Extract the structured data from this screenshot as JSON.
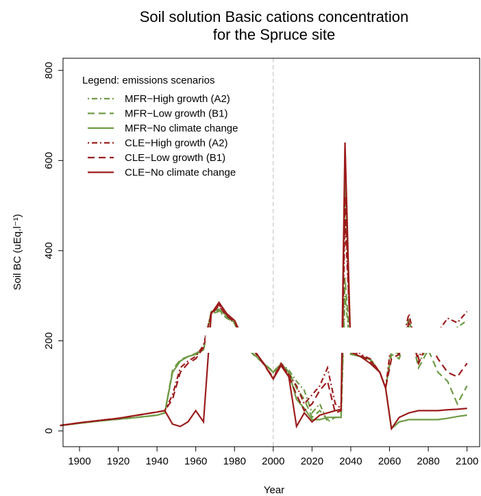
{
  "chart_data": {
    "type": "line",
    "title": "Soil solution Basic cations concentration",
    "subtitle": "for the Spruce site",
    "x_label": "Year",
    "y_label": "Soil BC (uEq.l⁻¹)",
    "legend_title": "Legend: emissions scenarios",
    "legend_position": "top-left",
    "vline": 2000,
    "x": [
      1890,
      1900,
      1910,
      1920,
      1930,
      1940,
      1944,
      1948,
      1952,
      1956,
      1960,
      1964,
      1968,
      1972,
      1976,
      1980,
      1985,
      1990,
      1995,
      2000,
      2004,
      2008,
      2012,
      2016,
      2020,
      2024,
      2028,
      2032,
      2035,
      2037,
      2040,
      2045,
      2050,
      2055,
      2058,
      2061,
      2065,
      2070,
      2075,
      2080,
      2085,
      2090,
      2095,
      2100
    ],
    "series": [
      {
        "name": "MFR−High growth (A2)",
        "color": "#6e9a45",
        "linestyle": "dotdash",
        "values": [
          12,
          17,
          22,
          26,
          30,
          35,
          40,
          130,
          155,
          165,
          170,
          180,
          260,
          265,
          250,
          240,
          190,
          170,
          150,
          130,
          150,
          135,
          110,
          90,
          40,
          60,
          20,
          30,
          30,
          300,
          175,
          165,
          160,
          130,
          95,
          180,
          170,
          250,
          150,
          190,
          200,
          210,
          230,
          245
        ]
      },
      {
        "name": "MFR−Low growth (B1)",
        "color": "#6e9a45",
        "linestyle": "dashed",
        "values": [
          12,
          17,
          22,
          26,
          30,
          35,
          40,
          135,
          158,
          165,
          172,
          182,
          262,
          268,
          252,
          238,
          192,
          168,
          150,
          132,
          148,
          132,
          95,
          70,
          30,
          45,
          25,
          30,
          30,
          340,
          172,
          165,
          158,
          130,
          95,
          170,
          160,
          230,
          140,
          180,
          130,
          110,
          60,
          100
        ]
      },
      {
        "name": "MFR−No climate change",
        "color": "#6e9a45",
        "linestyle": "solid",
        "values": [
          12,
          17,
          22,
          26,
          30,
          35,
          40,
          130,
          155,
          165,
          170,
          180,
          265,
          270,
          255,
          240,
          190,
          170,
          150,
          130,
          145,
          130,
          70,
          50,
          25,
          25,
          30,
          30,
          30,
          580,
          170,
          165,
          160,
          130,
          95,
          5,
          20,
          25,
          25,
          25,
          25,
          28,
          32,
          35
        ]
      },
      {
        "name": "CLE−High growth (A2)",
        "color": "#9b1b1b",
        "linestyle": "dotdash",
        "values": [
          12,
          18,
          23,
          28,
          35,
          42,
          45,
          80,
          140,
          155,
          165,
          190,
          262,
          280,
          258,
          245,
          200,
          180,
          150,
          118,
          150,
          125,
          100,
          60,
          80,
          100,
          140,
          60,
          50,
          470,
          200,
          170,
          160,
          130,
          95,
          200,
          170,
          260,
          160,
          215,
          220,
          250,
          240,
          265
        ]
      },
      {
        "name": "CLE−Low growth (B1)",
        "color": "#9b1b1b",
        "linestyle": "dashed",
        "values": [
          12,
          18,
          23,
          28,
          35,
          42,
          45,
          70,
          130,
          150,
          160,
          185,
          258,
          278,
          255,
          242,
          198,
          178,
          148,
          116,
          148,
          122,
          80,
          45,
          60,
          90,
          110,
          40,
          45,
          520,
          180,
          168,
          155,
          130,
          95,
          160,
          170,
          240,
          150,
          200,
          160,
          130,
          120,
          150
        ]
      },
      {
        "name": "CLE−No climate change",
        "color": "#9b1b1b",
        "linestyle": "solid",
        "values": [
          12,
          18,
          23,
          28,
          35,
          42,
          45,
          15,
          10,
          20,
          45,
          20,
          260,
          285,
          260,
          245,
          200,
          180,
          150,
          115,
          145,
          120,
          10,
          40,
          20,
          35,
          40,
          45,
          48,
          640,
          175,
          165,
          150,
          130,
          95,
          5,
          30,
          40,
          45,
          45,
          45,
          47,
          48,
          50
        ]
      }
    ],
    "xlim": [
      1891.5,
      2106.5
    ],
    "ylim": [
      -35,
      827
    ],
    "xticks": [
      1900,
      1920,
      1940,
      1960,
      1980,
      2000,
      2020,
      2040,
      2060,
      2080,
      2100
    ],
    "yticks": [
      0,
      200,
      400,
      600,
      800
    ]
  }
}
